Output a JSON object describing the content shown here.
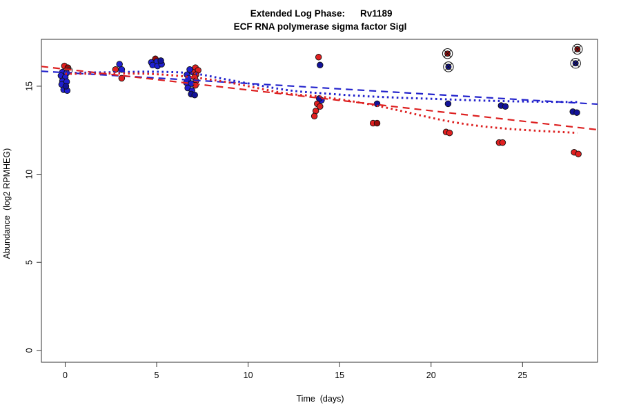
{
  "title": {
    "prefix": "Extended Log Phase:",
    "gene": "Rv1189",
    "subtitle": "ECF RNA polymerase sigma factor SigI"
  },
  "axes": {
    "x_label": "Time  (days)",
    "y_label": "Abundance  (log2 RPMHEG)"
  },
  "palette": {
    "red": "#e02020",
    "darkred": "#9c0b0b",
    "blue": "#1f1fd0",
    "navy": "#12129a",
    "line_red": "#dd2020",
    "line_blue": "#2222cc",
    "axis": "#333333",
    "marker_stroke": "#111111"
  },
  "chart_data": {
    "type": "scatter",
    "title": "Extended Log Phase:  Rv1189",
    "subtitle": "ECF RNA polymerase sigma factor SigI",
    "xlabel": "Time  (days)",
    "ylabel": "Abundance  (log2 RPMHEG)",
    "xlim": [
      -1.3,
      29.1
    ],
    "ylim": [
      -0.67,
      17.66
    ],
    "x_ticks": [
      0,
      5,
      10,
      15,
      20,
      25
    ],
    "y_ticks": [
      0,
      5,
      10,
      15
    ],
    "grid": false,
    "legend": "none",
    "series": [
      {
        "name": "red-points",
        "colorKey": "red",
        "points": [
          [
            -0.04,
            16.15
          ],
          [
            2.75,
            15.95
          ],
          [
            3.09,
            15.45
          ],
          [
            7.12,
            16.05
          ],
          [
            7.27,
            15.9
          ],
          [
            6.97,
            15.8
          ],
          [
            7.15,
            15.65
          ],
          [
            7.08,
            15.5
          ],
          [
            7.15,
            15.3
          ],
          [
            7.12,
            15.05
          ],
          [
            13.85,
            16.65
          ],
          [
            13.78,
            14.0
          ],
          [
            13.93,
            13.85
          ],
          [
            13.7,
            13.6
          ],
          [
            13.62,
            13.3
          ],
          [
            16.83,
            12.9
          ],
          [
            20.82,
            12.4
          ],
          [
            21.01,
            12.35
          ],
          [
            23.72,
            11.8
          ],
          [
            23.91,
            11.8
          ],
          [
            27.82,
            11.25
          ],
          [
            28.05,
            11.15
          ]
        ]
      },
      {
        "name": "darkred-points",
        "colorKey": "darkred",
        "points": [
          [
            0.15,
            16.05
          ],
          [
            4.93,
            16.55
          ],
          [
            17.05,
            12.9
          ]
        ]
      },
      {
        "name": "blue-points",
        "colorKey": "blue",
        "points": [
          [
            -0.15,
            15.8
          ],
          [
            0.08,
            15.75
          ],
          [
            -0.23,
            15.6
          ],
          [
            0.0,
            15.5
          ],
          [
            -0.15,
            15.3
          ],
          [
            0.08,
            15.25
          ],
          [
            -0.19,
            15.1
          ],
          [
            -0.08,
            14.8
          ],
          [
            0.11,
            14.75
          ],
          [
            2.97,
            16.25
          ],
          [
            3.09,
            15.95
          ],
          [
            4.71,
            16.35
          ],
          [
            5.01,
            16.4
          ],
          [
            4.78,
            16.2
          ],
          [
            5.05,
            16.15
          ],
          [
            5.27,
            16.25
          ],
          [
            6.81,
            15.95
          ],
          [
            6.66,
            15.65
          ],
          [
            6.74,
            15.45
          ],
          [
            6.63,
            15.2
          ],
          [
            6.89,
            15.15
          ],
          [
            6.7,
            14.9
          ],
          [
            6.93,
            14.75
          ],
          [
            14.01,
            14.2
          ]
        ]
      },
      {
        "name": "navy-points",
        "colorKey": "navy",
        "points": [
          [
            0.04,
            15.0
          ],
          [
            5.23,
            16.45
          ],
          [
            6.89,
            14.55
          ],
          [
            7.08,
            14.5
          ],
          [
            13.93,
            16.2
          ],
          [
            13.89,
            14.3
          ],
          [
            17.05,
            14.0
          ],
          [
            20.93,
            14.0
          ],
          [
            23.83,
            13.9
          ],
          [
            24.06,
            13.85
          ],
          [
            27.75,
            13.55
          ],
          [
            27.97,
            13.5
          ]
        ]
      }
    ],
    "flagged_outliers": [
      {
        "x": 20.9,
        "y": 16.85,
        "colorKey": "darkred"
      },
      {
        "x": 20.95,
        "y": 16.1,
        "colorKey": "navy"
      },
      {
        "x": 28.0,
        "y": 17.1,
        "colorKey": "darkred"
      },
      {
        "x": 27.9,
        "y": 16.3,
        "colorKey": "navy"
      }
    ],
    "open_rings": [
      {
        "x": 0.23,
        "y": 15.9
      }
    ],
    "trendlines": [
      {
        "name": "blue-linear-fit",
        "colorKey": "line_blue",
        "style": "longdash",
        "points": [
          [
            -1.3,
            15.85
          ],
          [
            29.1,
            13.98
          ]
        ]
      },
      {
        "name": "red-linear-fit",
        "colorKey": "line_red",
        "style": "longdash",
        "points": [
          [
            -1.3,
            16.12
          ],
          [
            29.1,
            12.53
          ]
        ]
      },
      {
        "name": "blue-loess-fit",
        "colorKey": "line_blue",
        "style": "dotted",
        "points": [
          [
            0,
            15.75
          ],
          [
            3,
            15.8
          ],
          [
            5,
            15.82
          ],
          [
            7,
            15.72
          ],
          [
            9,
            15.35
          ],
          [
            12,
            14.8
          ],
          [
            14,
            14.6
          ],
          [
            17,
            14.4
          ],
          [
            21,
            14.25
          ],
          [
            24,
            14.15
          ],
          [
            28,
            14.1
          ]
        ]
      },
      {
        "name": "red-loess-fit",
        "colorKey": "line_red",
        "style": "dotted",
        "points": [
          [
            0,
            15.7
          ],
          [
            3,
            15.72
          ],
          [
            5,
            15.68
          ],
          [
            7,
            15.5
          ],
          [
            9,
            15.2
          ],
          [
            12,
            14.6
          ],
          [
            14,
            14.4
          ],
          [
            17,
            13.9
          ],
          [
            21,
            13.0
          ],
          [
            24,
            12.6
          ],
          [
            28,
            12.35
          ]
        ]
      }
    ]
  }
}
